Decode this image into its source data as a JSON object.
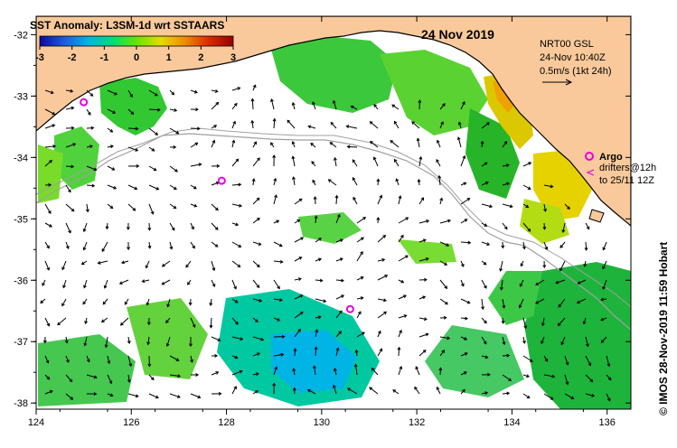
{
  "title": "SST Anomaly: L3SM-1d wrt SSTAARS",
  "date": "24 Nov 2019",
  "colorbar": {
    "ticks": [
      "-3",
      "-2",
      "-1",
      "0",
      "1",
      "2",
      "3"
    ],
    "min": -3,
    "max": 3,
    "colors": [
      "#0a0aa0",
      "#1e5adc",
      "#00b4e6",
      "#00dc78",
      "#64e600",
      "#e6dc00",
      "#f08c00",
      "#dc2800",
      "#960000"
    ]
  },
  "info": {
    "line1": "NRT00 GSL",
    "line2": "24-Nov 10:40Z",
    "line3": "0.5m/s (1kt 24h)"
  },
  "legend": {
    "argo_label": "Argo",
    "drifters_line1": "drifters@12h",
    "drifters_line2": "to 25/11 12Z",
    "argo_color": "#e600e6"
  },
  "credit": "© IMOS 28-Nov-2019 11:59 Hobart",
  "axes": {
    "lon_ticks": [
      "124",
      "126",
      "128",
      "130",
      "132",
      "134",
      "136"
    ],
    "lat_ticks": [
      "-32",
      "-33",
      "-34",
      "-35",
      "-36",
      "-37",
      "-38"
    ],
    "lon_range": [
      124,
      136.5
    ],
    "lat_range": [
      -38.1,
      -31.7
    ]
  },
  "colors": {
    "land": "#f9c99b",
    "ocean": "#ffffff",
    "coastline": "#000000",
    "shelf_contour": "#a0a0a0"
  },
  "argo_floats": [
    {
      "lon": 127.9,
      "lat": -34.38
    },
    {
      "lon": 130.6,
      "lat": -36.47
    },
    {
      "lon": 125.0,
      "lat": -33.1
    }
  ]
}
